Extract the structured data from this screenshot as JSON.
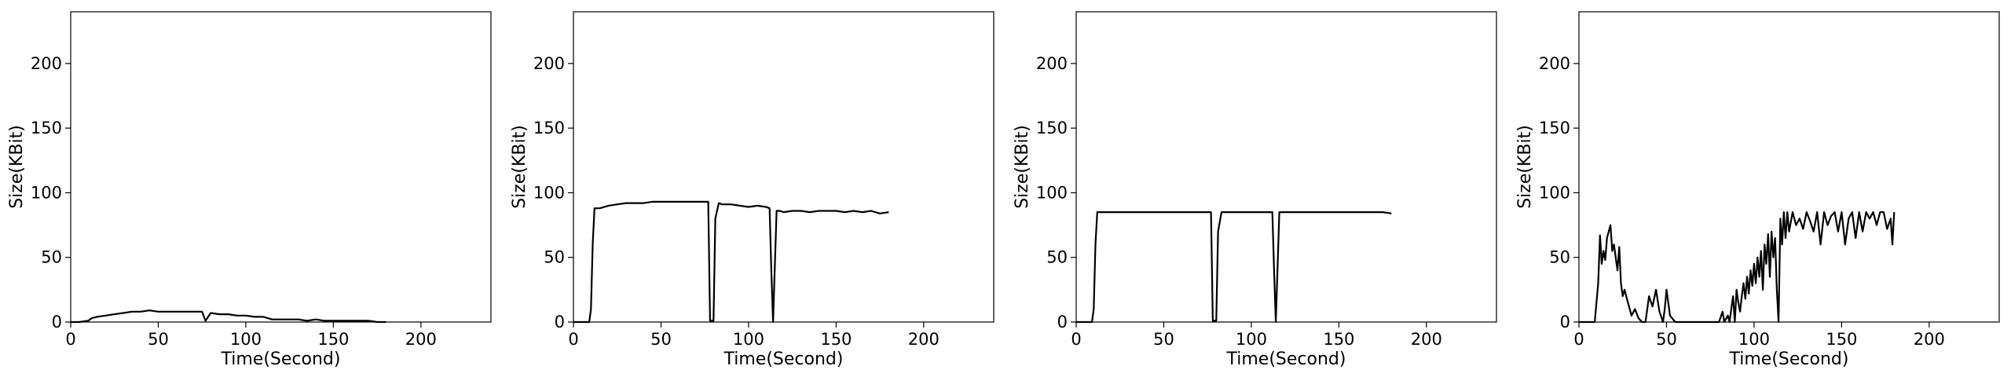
{
  "chart_data": [
    {
      "type": "line",
      "xlabel": "Time(Second)",
      "ylabel": "Size(KBit)",
      "xlim": [
        0,
        240
      ],
      "ylim": [
        0,
        240
      ],
      "xticks": [
        0,
        50,
        100,
        150,
        200
      ],
      "yticks": [
        0,
        50,
        100,
        150,
        200
      ],
      "grid": false,
      "series": [
        {
          "color": "#000000",
          "x": [
            0,
            5,
            10,
            12,
            15,
            20,
            25,
            30,
            35,
            40,
            45,
            50,
            55,
            60,
            65,
            70,
            75,
            77,
            80,
            85,
            90,
            95,
            100,
            105,
            110,
            115,
            120,
            125,
            130,
            135,
            140,
            145,
            150,
            155,
            160,
            165,
            170,
            175,
            180
          ],
          "y": [
            0,
            0,
            1,
            3,
            4,
            5,
            6,
            7,
            8,
            8,
            9,
            8,
            8,
            8,
            8,
            8,
            8,
            1,
            7,
            6,
            6,
            5,
            5,
            4,
            4,
            2,
            2,
            2,
            2,
            1,
            2,
            1,
            1,
            1,
            1,
            1,
            1,
            0,
            0
          ]
        }
      ]
    },
    {
      "type": "line",
      "xlabel": "Time(Second)",
      "ylabel": "Size(KBit)",
      "xlim": [
        0,
        240
      ],
      "ylim": [
        0,
        240
      ],
      "xticks": [
        0,
        50,
        100,
        150,
        200
      ],
      "yticks": [
        0,
        50,
        100,
        150,
        200
      ],
      "grid": false,
      "series": [
        {
          "color": "#000000",
          "x": [
            0,
            5,
            9,
            10,
            11,
            12,
            15,
            20,
            25,
            30,
            35,
            40,
            45,
            50,
            55,
            60,
            65,
            70,
            75,
            77,
            78,
            80,
            81,
            83,
            85,
            90,
            95,
            100,
            105,
            110,
            112,
            113,
            114,
            116,
            118,
            120,
            125,
            130,
            135,
            140,
            145,
            150,
            155,
            160,
            165,
            170,
            175,
            180
          ],
          "y": [
            0,
            0,
            0,
            10,
            60,
            88,
            88,
            90,
            91,
            92,
            92,
            92,
            93,
            93,
            93,
            93,
            93,
            93,
            93,
            93,
            1,
            1,
            80,
            92,
            91,
            91,
            90,
            89,
            90,
            89,
            88,
            40,
            0,
            86,
            86,
            85,
            86,
            86,
            85,
            86,
            86,
            86,
            85,
            86,
            85,
            86,
            84,
            85
          ]
        }
      ]
    },
    {
      "type": "line",
      "xlabel": "Time(Second)",
      "ylabel": "Size(KBit)",
      "xlim": [
        0,
        240
      ],
      "ylim": [
        0,
        240
      ],
      "xticks": [
        0,
        50,
        100,
        150,
        200
      ],
      "yticks": [
        0,
        50,
        100,
        150,
        200
      ],
      "grid": false,
      "series": [
        {
          "color": "#000000",
          "x": [
            0,
            5,
            9,
            10,
            11,
            12,
            15,
            20,
            25,
            30,
            35,
            40,
            45,
            50,
            55,
            60,
            65,
            70,
            75,
            77,
            78,
            80,
            81,
            83,
            85,
            90,
            95,
            100,
            105,
            110,
            112,
            113,
            114,
            116,
            118,
            120,
            125,
            130,
            135,
            140,
            145,
            150,
            155,
            160,
            165,
            170,
            175,
            180
          ],
          "y": [
            0,
            0,
            0,
            10,
            60,
            85,
            85,
            85,
            85,
            85,
            85,
            85,
            85,
            85,
            85,
            85,
            85,
            85,
            85,
            85,
            1,
            1,
            70,
            85,
            85,
            85,
            85,
            85,
            85,
            85,
            85,
            40,
            0,
            85,
            85,
            85,
            85,
            85,
            85,
            85,
            85,
            85,
            85,
            85,
            85,
            85,
            85,
            84
          ]
        }
      ]
    },
    {
      "type": "line",
      "xlabel": "Time(Second)",
      "ylabel": "Size(KBit)",
      "xlim": [
        0,
        240
      ],
      "ylim": [
        0,
        240
      ],
      "xticks": [
        0,
        50,
        100,
        150,
        200
      ],
      "yticks": [
        0,
        50,
        100,
        150,
        200
      ],
      "grid": false,
      "series": [
        {
          "color": "#000000",
          "x": [
            0,
            5,
            9,
            11,
            12,
            13,
            14,
            15,
            16,
            17,
            18,
            19,
            20,
            21,
            22,
            23,
            24,
            25,
            26,
            28,
            30,
            32,
            34,
            36,
            38,
            40,
            42,
            44,
            46,
            48,
            49,
            50,
            52,
            55,
            60,
            65,
            70,
            75,
            80,
            82,
            83,
            85,
            86,
            87,
            88,
            89,
            90,
            91,
            92,
            93,
            94,
            95,
            96,
            97,
            98,
            99,
            100,
            101,
            102,
            103,
            104,
            105,
            106,
            107,
            108,
            109,
            110,
            111,
            112,
            113,
            114,
            115,
            116,
            117,
            118,
            119,
            120,
            122,
            124,
            126,
            128,
            130,
            132,
            134,
            136,
            138,
            140,
            142,
            144,
            146,
            148,
            150,
            152,
            154,
            156,
            158,
            160,
            162,
            164,
            166,
            168,
            170,
            172,
            174,
            176,
            178,
            179,
            180
          ],
          "y": [
            0,
            0,
            0,
            30,
            67,
            45,
            55,
            48,
            65,
            70,
            75,
            55,
            60,
            50,
            40,
            58,
            30,
            20,
            25,
            15,
            5,
            10,
            3,
            0,
            0,
            20,
            12,
            25,
            8,
            0,
            10,
            25,
            5,
            0,
            0,
            0,
            0,
            0,
            0,
            8,
            0,
            5,
            0,
            10,
            20,
            0,
            25,
            15,
            8,
            20,
            30,
            18,
            35,
            22,
            40,
            28,
            45,
            30,
            50,
            35,
            55,
            25,
            60,
            45,
            68,
            35,
            70,
            50,
            65,
            25,
            0,
            80,
            60,
            85,
            65,
            85,
            70,
            85,
            75,
            80,
            72,
            85,
            78,
            70,
            85,
            60,
            85,
            75,
            82,
            85,
            70,
            85,
            60,
            80,
            85,
            65,
            85,
            70,
            85,
            80,
            85,
            75,
            85,
            85,
            72,
            80,
            60,
            85
          ]
        }
      ]
    }
  ]
}
